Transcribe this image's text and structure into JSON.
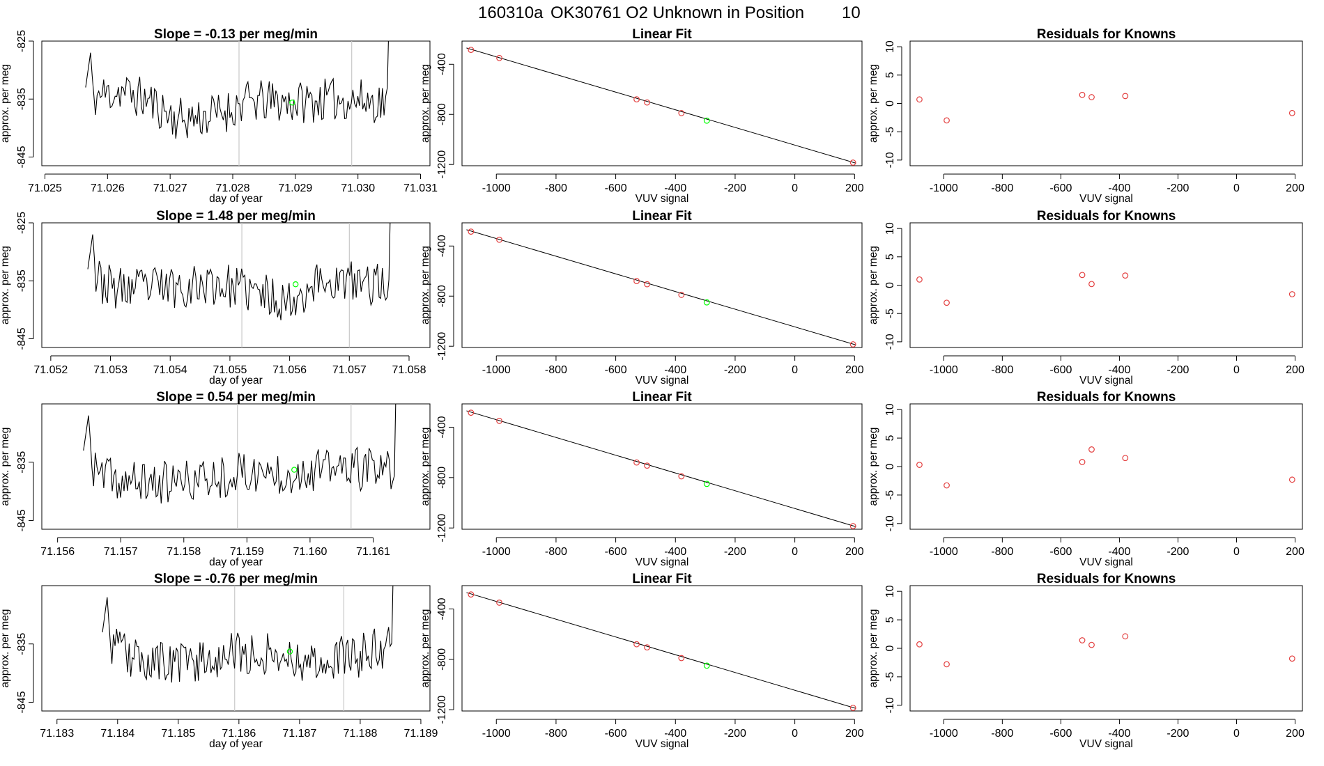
{
  "figure": {
    "run_id": "160310a",
    "tank_id": "OK30761",
    "description": "O2 Unknown in Position",
    "position": "10"
  },
  "colors": {
    "series": "#000000",
    "current_point": "#00ff00",
    "known_points": "#e34040",
    "window_lines": "#c8c8c8"
  },
  "chart_data": [
    {
      "type": "line",
      "title_prefix": "Slope = ",
      "slope": "-0.13",
      "title_suffix": " per meg/min",
      "xlabel": "day of year",
      "ylabel": "approx. per meg",
      "xlim": [
        71.02495,
        71.03115
      ],
      "ylim": [
        -846.5,
        -825
      ],
      "xticks": [
        "71.025",
        "71.026",
        "71.027",
        "71.028",
        "71.029",
        "71.030",
        "71.031"
      ],
      "yticks": [
        "-845",
        "-835",
        "-825"
      ],
      "x_start": 71.02565,
      "x_end": 71.0306,
      "window_lines": [
        71.0281,
        71.0299
      ],
      "highlight_point": [
        71.02895,
        -835.6
      ],
      "seed": 11,
      "baseline": [
        [
          71.02565,
          -835
        ],
        [
          71.0262,
          -833.5
        ],
        [
          71.0267,
          -835.5
        ],
        [
          71.0271,
          -838.5
        ],
        [
          71.0276,
          -838
        ],
        [
          71.0279,
          -837
        ],
        [
          71.0282,
          -835.5
        ],
        [
          71.029,
          -835.5
        ],
        [
          71.0298,
          -835
        ],
        [
          71.0304,
          -835.5
        ]
      ]
    },
    {
      "type": "line",
      "title_prefix": "Slope = ",
      "slope": "1.48",
      "title_suffix": " per meg/min",
      "xlabel": "day of year",
      "ylabel": "approx. per meg",
      "xlim": [
        71.05185,
        71.05835
      ],
      "ylim": [
        -846.5,
        -825
      ],
      "xticks": [
        "71.052",
        "71.053",
        "71.054",
        "71.055",
        "71.056",
        "71.057",
        "71.058"
      ],
      "yticks": [
        "-845",
        "-835",
        "-825"
      ],
      "x_start": 71.05262,
      "x_end": 71.0578,
      "window_lines": [
        71.0552,
        71.057
      ],
      "highlight_point": [
        71.0561,
        -835.6
      ],
      "seed": 23,
      "baseline": [
        [
          71.05262,
          -834
        ],
        [
          71.0531,
          -836.5
        ],
        [
          71.054,
          -836
        ],
        [
          71.0548,
          -835.5
        ],
        [
          71.0556,
          -837.5
        ],
        [
          71.056,
          -838.5
        ],
        [
          71.0565,
          -835
        ],
        [
          71.0573,
          -835.5
        ]
      ]
    },
    {
      "type": "line",
      "title_prefix": "Slope = ",
      "slope": "0.54",
      "title_suffix": " per meg/min",
      "xlabel": "day of year",
      "ylabel": "approx. per meg",
      "xlim": [
        71.15575,
        71.1619
      ],
      "ylim": [
        -846.5,
        -825
      ],
      "xticks": [
        "71.156",
        "71.157",
        "71.158",
        "71.159",
        "71.160",
        "71.161"
      ],
      "yticks": [
        "-845",
        "-835"
      ],
      "x_start": 71.15641,
      "x_end": 71.16147,
      "window_lines": [
        71.15885,
        71.16065
      ],
      "highlight_point": [
        71.15975,
        -836.3
      ],
      "seed": 37,
      "baseline": [
        [
          71.15641,
          -836
        ],
        [
          71.157,
          -838.5
        ],
        [
          71.158,
          -838.5
        ],
        [
          71.1588,
          -837
        ],
        [
          71.1595,
          -836.8
        ],
        [
          71.1605,
          -836
        ],
        [
          71.1612,
          -836.5
        ]
      ]
    },
    {
      "type": "line",
      "title_prefix": "Slope = ",
      "slope": "-0.76",
      "title_suffix": " per meg/min",
      "xlabel": "day of year",
      "ylabel": "approx. per meg",
      "xlim": [
        71.18275,
        71.18915
      ],
      "ylim": [
        -846.5,
        -825
      ],
      "xticks": [
        "71.183",
        "71.184",
        "71.185",
        "71.186",
        "71.187",
        "71.188",
        "71.189"
      ],
      "yticks": [
        "-845",
        "-835"
      ],
      "x_start": 71.18375,
      "x_end": 71.18865,
      "window_lines": [
        71.18593,
        71.18773
      ],
      "highlight_point": [
        71.18684,
        -836.3
      ],
      "seed": 53,
      "baseline": [
        [
          71.18375,
          -834
        ],
        [
          71.1842,
          -837.5
        ],
        [
          71.185,
          -838.5
        ],
        [
          71.1857,
          -837
        ],
        [
          71.1865,
          -836.5
        ],
        [
          71.1872,
          -838
        ],
        [
          71.188,
          -837
        ],
        [
          71.1885,
          -835
        ]
      ]
    },
    {
      "type": "scatter",
      "title": "Linear Fit",
      "xlabel": "VUV signal",
      "ylabel": "approx. per meg",
      "xlim": [
        -1115,
        225
      ],
      "ylim": [
        -1210,
        -215
      ],
      "xticks": [
        "-1000",
        "-800",
        "-600",
        "-400",
        "-200",
        "0",
        "200"
      ],
      "yticks": [
        "-1200",
        "-800",
        "-400"
      ],
      "fit_line": [
        [
          -1100,
          -270
        ],
        [
          205,
          -1190
        ]
      ],
      "known_points": [
        [
          -1085,
          -285
        ],
        [
          -990,
          -350
        ],
        [
          -530,
          -680
        ],
        [
          -495,
          -705
        ],
        [
          -380,
          -790
        ],
        [
          195,
          -1185
        ]
      ],
      "current_point": [
        -295,
        -850
      ]
    },
    {
      "type": "scatter",
      "title": "Linear Fit",
      "xlabel": "VUV signal",
      "ylabel": "approx. per meg",
      "xlim": [
        -1115,
        225
      ],
      "ylim": [
        -1210,
        -215
      ],
      "xticks": [
        "-1000",
        "-800",
        "-600",
        "-400",
        "-200",
        "0",
        "200"
      ],
      "yticks": [
        "-1200",
        "-800",
        "-400"
      ],
      "fit_line": [
        [
          -1100,
          -270
        ],
        [
          205,
          -1190
        ]
      ],
      "known_points": [
        [
          -1085,
          -285
        ],
        [
          -990,
          -350
        ],
        [
          -530,
          -680
        ],
        [
          -495,
          -705
        ],
        [
          -380,
          -790
        ],
        [
          195,
          -1185
        ]
      ],
      "current_point": [
        -295,
        -850
      ]
    },
    {
      "type": "scatter",
      "title": "Linear Fit",
      "xlabel": "VUV signal",
      "ylabel": "approx. per meg",
      "xlim": [
        -1115,
        225
      ],
      "ylim": [
        -1210,
        -215
      ],
      "xticks": [
        "-1000",
        "-800",
        "-600",
        "-400",
        "-200",
        "0",
        "200"
      ],
      "yticks": [
        "-1200",
        "-800",
        "-400"
      ],
      "fit_line": [
        [
          -1100,
          -270
        ],
        [
          205,
          -1190
        ]
      ],
      "known_points": [
        [
          -1085,
          -285
        ],
        [
          -990,
          -350
        ],
        [
          -530,
          -680
        ],
        [
          -495,
          -705
        ],
        [
          -380,
          -790
        ],
        [
          195,
          -1185
        ]
      ],
      "current_point": [
        -295,
        -850
      ]
    },
    {
      "type": "scatter",
      "title": "Linear Fit",
      "xlabel": "VUV signal",
      "ylabel": "approx. per meg",
      "xlim": [
        -1115,
        225
      ],
      "ylim": [
        -1210,
        -215
      ],
      "xticks": [
        "-1000",
        "-800",
        "-600",
        "-400",
        "-200",
        "0",
        "200"
      ],
      "yticks": [
        "-1200",
        "-800",
        "-400"
      ],
      "fit_line": [
        [
          -1100,
          -270
        ],
        [
          205,
          -1190
        ]
      ],
      "known_points": [
        [
          -1085,
          -285
        ],
        [
          -990,
          -350
        ],
        [
          -530,
          -680
        ],
        [
          -495,
          -705
        ],
        [
          -380,
          -790
        ],
        [
          195,
          -1185
        ]
      ],
      "current_point": [
        -295,
        -850
      ]
    },
    {
      "type": "scatter",
      "title": "Residuals for Knowns",
      "xlabel": "VUV signal",
      "ylabel": "approx. per meg",
      "xlim": [
        -1115,
        225
      ],
      "ylim": [
        -11,
        11
      ],
      "xticks": [
        "-1000",
        "-800",
        "-600",
        "-400",
        "-200",
        "0",
        "200"
      ],
      "yticks": [
        "-10",
        "-5",
        "0",
        "5",
        "10"
      ],
      "points": [
        [
          -1083,
          0.7
        ],
        [
          -990,
          -3.0
        ],
        [
          -527,
          1.5
        ],
        [
          -495,
          1.1
        ],
        [
          -380,
          1.3
        ],
        [
          190,
          -1.7
        ]
      ]
    },
    {
      "type": "scatter",
      "title": "Residuals for Knowns",
      "xlabel": "VUV signal",
      "ylabel": "approx. per meg",
      "xlim": [
        -1115,
        225
      ],
      "ylim": [
        -11,
        11
      ],
      "xticks": [
        "-1000",
        "-800",
        "-600",
        "-400",
        "-200",
        "0",
        "200"
      ],
      "yticks": [
        "-10",
        "-5",
        "0",
        "5",
        "10"
      ],
      "points": [
        [
          -1083,
          1.0
        ],
        [
          -990,
          -3.1
        ],
        [
          -527,
          1.8
        ],
        [
          -495,
          0.2
        ],
        [
          -380,
          1.7
        ],
        [
          190,
          -1.6
        ]
      ]
    },
    {
      "type": "scatter",
      "title": "Residuals for Knowns",
      "xlabel": "VUV signal",
      "ylabel": "approx. per meg",
      "xlim": [
        -1115,
        225
      ],
      "ylim": [
        -11,
        11
      ],
      "xticks": [
        "-1000",
        "-800",
        "-600",
        "-400",
        "-200",
        "0",
        "200"
      ],
      "yticks": [
        "-10",
        "-5",
        "0",
        "5",
        "10"
      ],
      "points": [
        [
          -1083,
          0.3
        ],
        [
          -990,
          -3.3
        ],
        [
          -527,
          0.8
        ],
        [
          -495,
          3.0
        ],
        [
          -380,
          1.5
        ],
        [
          190,
          -2.3
        ]
      ]
    },
    {
      "type": "scatter",
      "title": "Residuals for Knowns",
      "xlabel": "VUV signal",
      "ylabel": "approx. per meg",
      "xlim": [
        -1115,
        225
      ],
      "ylim": [
        -11,
        11
      ],
      "xticks": [
        "-1000",
        "-800",
        "-600",
        "-400",
        "-200",
        "0",
        "200"
      ],
      "yticks": [
        "-10",
        "-5",
        "0",
        "5",
        "10"
      ],
      "points": [
        [
          -1083,
          0.7
        ],
        [
          -990,
          -2.8
        ],
        [
          -527,
          1.4
        ],
        [
          -495,
          0.6
        ],
        [
          -380,
          2.1
        ],
        [
          190,
          -1.8
        ]
      ]
    }
  ]
}
